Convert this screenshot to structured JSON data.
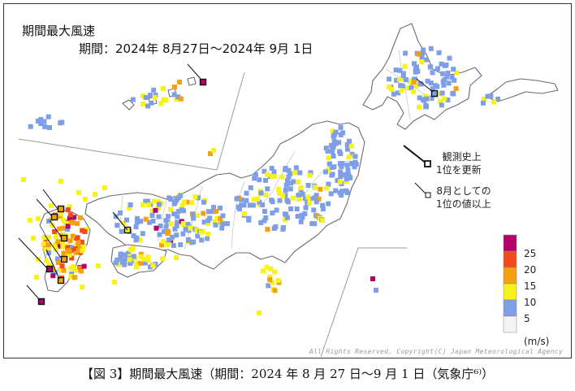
{
  "map": {
    "title": "期間最大風速",
    "period": "期間：2024年 8月27日〜2024年 9月 1日",
    "copyright": "All Rights Reserved, Copyright(C) Japan Meteorological Agency",
    "colors": {
      "bin5": "#7f9ee8",
      "bin10": "#f7f21a",
      "bin15": "#f5a00f",
      "bin20": "#f24a1a",
      "bin25": "#b5006a",
      "bin0": "#f4f4f8",
      "land": "#ffffff",
      "coast": "#6b6b6b",
      "pref_border": "#c8c8c8"
    },
    "legend": {
      "unit": "(m/s)",
      "levels": [
        "25",
        "20",
        "15",
        "10",
        "5"
      ]
    },
    "marker_notes": {
      "record_all_time": "観測史上\n1位を更新",
      "record_august": "8月としての\n1位の値以上"
    },
    "stations_summary": "colored square per observation station; color = maximum wind speed class"
  },
  "caption": {
    "text": "【図 3】期間最大風速（期間：2024 年 8 月 27 日〜9 月 1 日（気象庁⁶⁾）"
  }
}
